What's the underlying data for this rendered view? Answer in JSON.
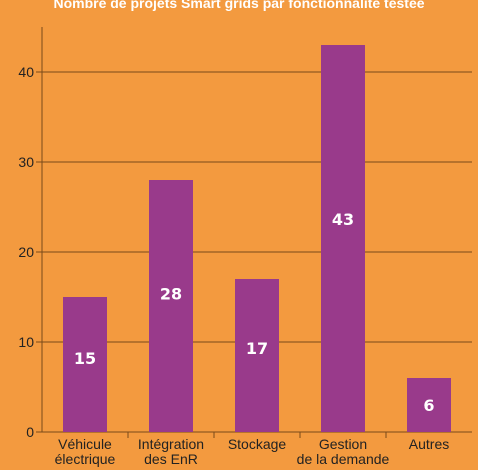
{
  "colors": {
    "background": "#f39a3f",
    "bar": "#993a8b",
    "grid": "#7a4a1a",
    "text": "#222222",
    "title": "#ffffff"
  },
  "chart_data": {
    "type": "bar",
    "title": "Nombre de projets Smart grids par fonctionnalité testée",
    "xlabel": "",
    "ylabel": "",
    "ylim": [
      0,
      45
    ],
    "yticks": [
      0,
      10,
      20,
      30,
      40
    ],
    "grid": true,
    "legend": "none",
    "categories": [
      [
        "Véhicule",
        "électrique"
      ],
      [
        "Intégration",
        "des EnR"
      ],
      [
        "Stockage"
      ],
      [
        "Gestion",
        "de la demande"
      ],
      [
        "Autres"
      ]
    ],
    "values": [
      15,
      28,
      17,
      43,
      6
    ],
    "data_labels": [
      "15",
      "28",
      "17",
      "43",
      "6"
    ]
  }
}
